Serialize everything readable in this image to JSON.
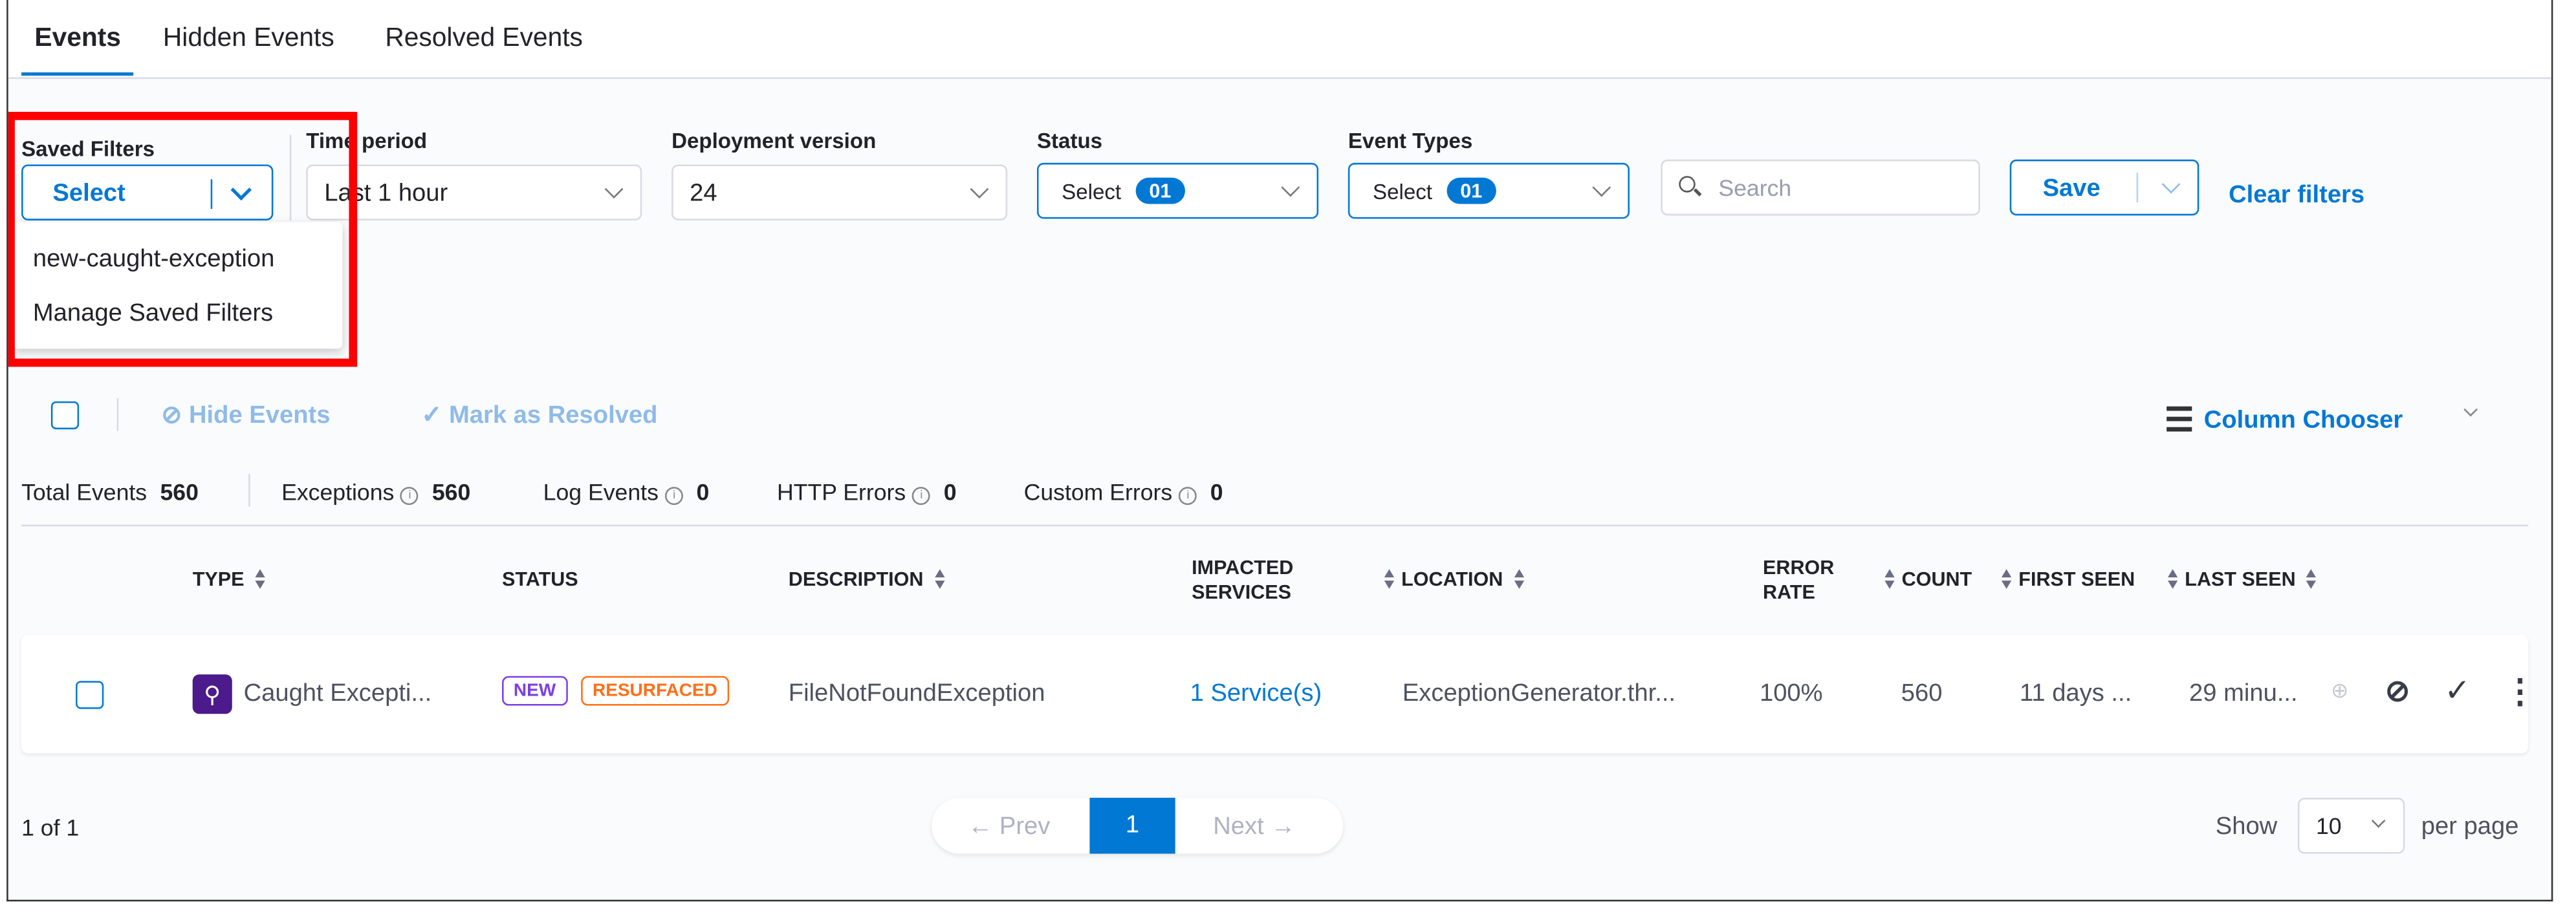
{
  "tabs": [
    {
      "label": "Events",
      "active": true
    },
    {
      "label": "Hidden Events"
    },
    {
      "label": "Resolved Events"
    }
  ],
  "filters": {
    "saved_filters": {
      "label": "Saved Filters",
      "value": "Select",
      "menu": [
        "new-caught-exception",
        "Manage Saved Filters"
      ]
    },
    "time_period": {
      "label": "Time period",
      "value": "Last 1 hour"
    },
    "deployment_version": {
      "label": "Deployment version",
      "value": "24"
    },
    "status": {
      "label": "Status",
      "value": "Select",
      "count": "01"
    },
    "event_types": {
      "label": "Event Types",
      "value": "Select",
      "count": "01"
    },
    "search": {
      "placeholder": "Search"
    },
    "save_label": "Save",
    "clear_label": "Clear filters"
  },
  "actions": {
    "hide": "Hide Events",
    "resolve": "Mark as Resolved",
    "column_chooser": "Column Chooser"
  },
  "stats": {
    "total_label": "Total Events",
    "total": "560",
    "exceptions_label": "Exceptions",
    "exceptions": "560",
    "log_label": "Log Events",
    "log": "0",
    "http_label": "HTTP Errors",
    "http": "0",
    "custom_label": "Custom Errors",
    "custom": "0"
  },
  "table": {
    "headers": {
      "type": "TYPE",
      "status": "STATUS",
      "description": "DESCRIPTION",
      "impacted1": "IMPACTED",
      "impacted2": "SERVICES",
      "location": "LOCATION",
      "error1": "ERROR",
      "error2": "RATE",
      "count": "COUNT",
      "first_seen": "FIRST SEEN",
      "last_seen": "LAST SEEN"
    },
    "rows": [
      {
        "type": "Caught Excepti...",
        "badges": [
          "NEW",
          "RESURFACED"
        ],
        "description": "FileNotFoundException",
        "impacted": "1 Service(s)",
        "location": "ExceptionGenerator.thr...",
        "error_rate": "100%",
        "count": "560",
        "first_seen": "11 days ...",
        "last_seen": "29 minu..."
      }
    ]
  },
  "footer": {
    "range": "1 of 1",
    "prev": "← Prev",
    "page": "1",
    "next": "Next →",
    "show": "Show",
    "page_size": "10",
    "per_page": "per page"
  },
  "colors": {
    "accent": "#0278d5",
    "new": "#7b3fe4",
    "resurfaced": "#ff6f16",
    "type_icon": "#4b1a8b",
    "highlight": "#ff0000"
  }
}
